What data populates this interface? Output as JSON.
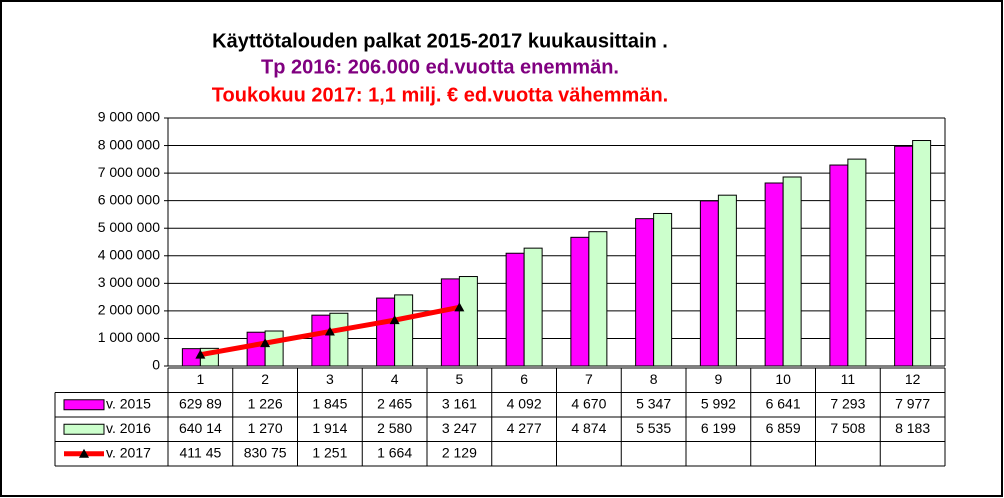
{
  "chart_data": {
    "type": "bar",
    "title": "Käyttötalouden palkat 2015-2017 kuukausittain .",
    "subtitles": [
      "Tp 2016: 206.000 ed.vuotta enemmän.",
      "Toukokuu 2017: 1,1 milj. € ed.vuotta vähemmän."
    ],
    "subtitle_colors": [
      "#800080",
      "#ff0000"
    ],
    "categories": [
      "1",
      "2",
      "3",
      "4",
      "5",
      "6",
      "7",
      "8",
      "9",
      "10",
      "11",
      "12"
    ],
    "series": [
      {
        "name": "v. 2015",
        "color": "#ff00ff",
        "type": "bar",
        "values": [
          629890,
          1226000,
          1845000,
          2465000,
          3161000,
          4092000,
          4670000,
          5347000,
          5992000,
          6641000,
          7293000,
          7977000
        ],
        "value_labels": [
          "629 89",
          "1 226",
          "1 845",
          "2 465",
          "3 161",
          "4 092",
          "4 670",
          "5 347",
          "5 992",
          "6 641",
          "7 293",
          "7 977"
        ]
      },
      {
        "name": "v. 2016",
        "color": "#ccffcc",
        "type": "bar",
        "values": [
          640140,
          1270000,
          1914000,
          2580000,
          3247000,
          4277000,
          4874000,
          5535000,
          6199000,
          6859000,
          7508000,
          8183000
        ],
        "value_labels": [
          "640 14",
          "1 270",
          "1 914",
          "2 580",
          "3 247",
          "4 277",
          "4 874",
          "5 535",
          "6 199",
          "6 859",
          "7 508",
          "8 183"
        ]
      },
      {
        "name": "v. 2017",
        "color": "#ff0000",
        "type": "line",
        "values": [
          411450,
          830750,
          1251000,
          1664000,
          2129000,
          null,
          null,
          null,
          null,
          null,
          null,
          null
        ],
        "value_labels": [
          "411 45",
          "830 75",
          "1 251",
          "1 664",
          "2 129",
          null,
          null,
          null,
          null,
          null,
          null,
          null
        ]
      }
    ],
    "ylim": [
      0,
      9000000
    ],
    "yticks": [
      0,
      {
        "value": 1000000,
        "label": "1 000 000"
      },
      {
        "value": 2000000,
        "label": "2 000 000"
      },
      {
        "value": 3000000,
        "label": "3 000 000"
      },
      {
        "value": 4000000,
        "label": "4 000 000"
      },
      {
        "value": 5000000,
        "label": "5 000 000"
      },
      {
        "value": 6000000,
        "label": "6 000 000"
      },
      {
        "value": 7000000,
        "label": "7 000 000"
      },
      {
        "value": 8000000,
        "label": "8 000 000"
      },
      {
        "value": 9000000,
        "label": "9 000 000"
      }
    ],
    "grid": true
  }
}
